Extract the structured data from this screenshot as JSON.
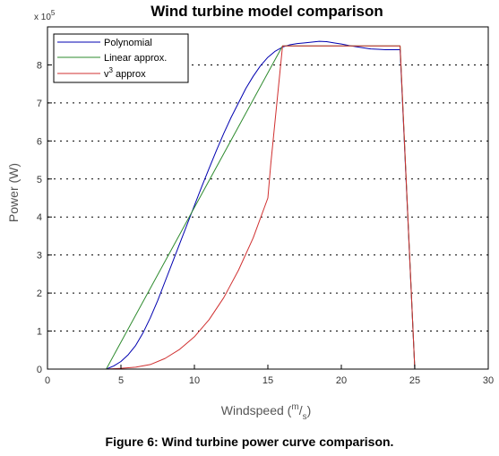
{
  "caption": "Figure 6: Wind turbine power curve comparison.",
  "chart_data": {
    "type": "line",
    "title": "Wind turbine model comparison",
    "xlabel_main": "Windspeed (",
    "xlabel_unit_m": "m",
    "xlabel_slash": "/",
    "xlabel_unit_s": "s",
    "xlabel_close": ")",
    "ylabel": "Power (W)",
    "y_exponent_prefix": "x 10",
    "y_exponent_power": "5",
    "xlim": [
      0,
      30
    ],
    "ylim": [
      0,
      9
    ],
    "xticks": [
      0,
      5,
      10,
      15,
      20,
      25,
      30
    ],
    "yticks": [
      0,
      1,
      2,
      3,
      4,
      5,
      6,
      7,
      8
    ],
    "grid": "horizontal dotted",
    "legend_position": "top-left",
    "series": [
      {
        "name": "Polynomial",
        "color": "#0000b0",
        "x": [
          0,
          4,
          4.5,
          5,
          5.5,
          6,
          6.5,
          7,
          7.5,
          8,
          8.5,
          9,
          9.5,
          10,
          10.5,
          11,
          11.5,
          12,
          12.5,
          13,
          13.5,
          14,
          14.5,
          15,
          15.5,
          16,
          16.5,
          17,
          17.5,
          18,
          18.5,
          19,
          19.5,
          20,
          20.5,
          21,
          21.5,
          22,
          22.5,
          23,
          23.5,
          24,
          25,
          30
        ],
        "y": [
          0,
          0,
          0.08,
          0.2,
          0.38,
          0.62,
          0.95,
          1.35,
          1.8,
          2.3,
          2.8,
          3.3,
          3.8,
          4.3,
          4.8,
          5.28,
          5.75,
          6.2,
          6.62,
          7.0,
          7.38,
          7.7,
          7.98,
          8.2,
          8.36,
          8.47,
          8.53,
          8.56,
          8.58,
          8.6,
          8.62,
          8.61,
          8.58,
          8.55,
          8.51,
          8.48,
          8.45,
          8.42,
          8.41,
          8.4,
          8.4,
          8.4,
          0,
          0
        ]
      },
      {
        "name": "Linear approx.",
        "color": "#2e8b2e",
        "x": [
          0,
          4,
          16,
          24,
          25,
          30
        ],
        "y": [
          0,
          0,
          8.5,
          8.5,
          0,
          0
        ]
      },
      {
        "name": "v",
        "name_sup": "3",
        "name_suffix": " approx",
        "color": "#d03030",
        "x": [
          0,
          4,
          5,
          6,
          7,
          8,
          9,
          10,
          11,
          12,
          13,
          14,
          15,
          15.2,
          16,
          24,
          25,
          30
        ],
        "y": [
          0,
          0,
          0.02,
          0.05,
          0.12,
          0.28,
          0.52,
          0.85,
          1.3,
          1.88,
          2.6,
          3.45,
          4.5,
          5.4,
          8.5,
          8.5,
          0,
          0
        ]
      }
    ]
  }
}
